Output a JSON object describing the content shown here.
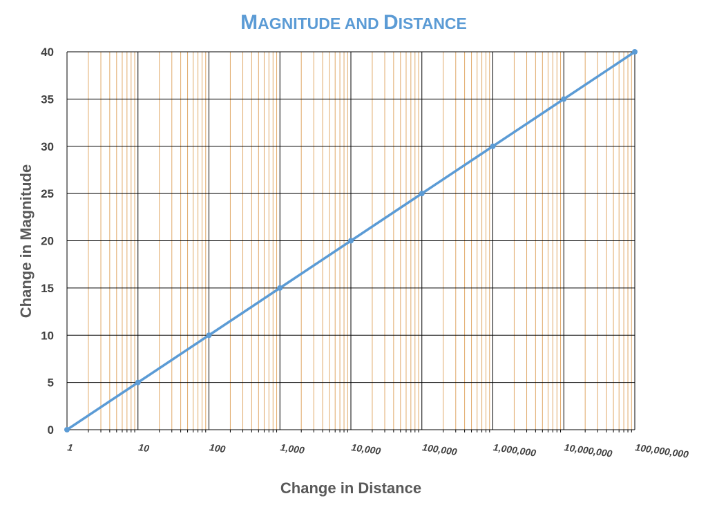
{
  "chart_data": {
    "type": "line",
    "title_big": [
      "M",
      "D"
    ],
    "title_small": [
      "AGNITUDE AND ",
      "ISTANCE"
    ],
    "xlabel": "Change in Distance",
    "ylabel": "Change in Magnitude",
    "x_scale": "log",
    "xlim": [
      1,
      100000000
    ],
    "ylim": [
      0,
      40
    ],
    "grid": true,
    "x_tick_labels": [
      "1",
      "10",
      "100",
      "1,000",
      "10,000",
      "100,000",
      "1,000,000",
      "10,000,000",
      "100,000,000"
    ],
    "y_tick_labels": [
      "0",
      "5",
      "10",
      "15",
      "20",
      "25",
      "30",
      "35",
      "40"
    ],
    "series": [
      {
        "x": [
          1,
          10,
          100,
          1000,
          10000,
          100000,
          1000000,
          10000000,
          100000000
        ],
        "values": [
          0,
          5,
          10,
          15,
          20,
          25,
          30,
          35,
          40
        ],
        "color": "#5b9bd5"
      }
    ],
    "colors": {
      "line": "#5b9bd5",
      "major_grid": "#000000",
      "minor_grid": "#e0a868",
      "title": "#5b9bd5",
      "axis_text": "#595959"
    }
  }
}
